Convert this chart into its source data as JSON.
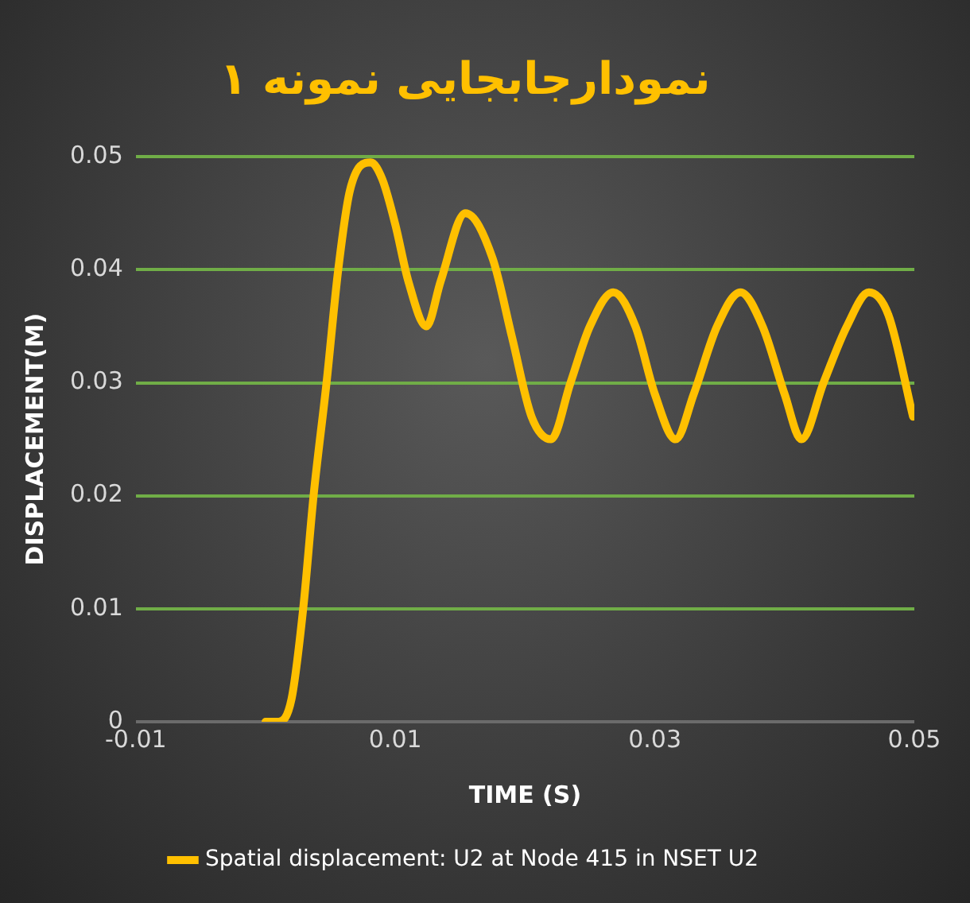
{
  "chart_data": {
    "type": "line",
    "title": "نمودارجابجایی نمونه ۱",
    "xlabel": "TIME (S)",
    "ylabel": "DISPLACEMENT(M)",
    "xlim": [
      -0.01,
      0.05
    ],
    "xticks": [
      -0.01,
      0.01,
      0.03,
      0.05
    ],
    "ylim": [
      0,
      0.05
    ],
    "yticks": [
      0,
      0.01,
      0.02,
      0.03,
      0.04,
      0.05
    ],
    "grid": "y",
    "legend": "bottom",
    "marker": "none",
    "line_style": "solid",
    "x": [
      0,
      0.001,
      0.002,
      0.0029,
      0.0037,
      0.0047,
      0.0056,
      0.0065,
      0.0081,
      0.009,
      0.01,
      0.011,
      0.0124,
      0.0135,
      0.0154,
      0.0175,
      0.019,
      0.0205,
      0.022,
      0.0235,
      0.025,
      0.0268,
      0.0285,
      0.03,
      0.0316,
      0.033,
      0.0348,
      0.0366,
      0.0383,
      0.04,
      0.0413,
      0.043,
      0.0448,
      0.0465,
      0.048,
      0.0499
    ],
    "series": [
      {
        "name": "Spatial displacement: U2 at Node 415 in NSET U2",
        "color": "#ffc000",
        "values": [
          0,
          0,
          0.002,
          0.01,
          0.02,
          0.03,
          0.04,
          0.047,
          0.0495,
          0.048,
          0.044,
          0.039,
          0.035,
          0.039,
          0.045,
          0.041,
          0.034,
          0.027,
          0.025,
          0.03,
          0.035,
          0.038,
          0.035,
          0.029,
          0.025,
          0.029,
          0.035,
          0.038,
          0.035,
          0.029,
          0.025,
          0.03,
          0.035,
          0.038,
          0.036,
          0.027
        ]
      }
    ]
  }
}
